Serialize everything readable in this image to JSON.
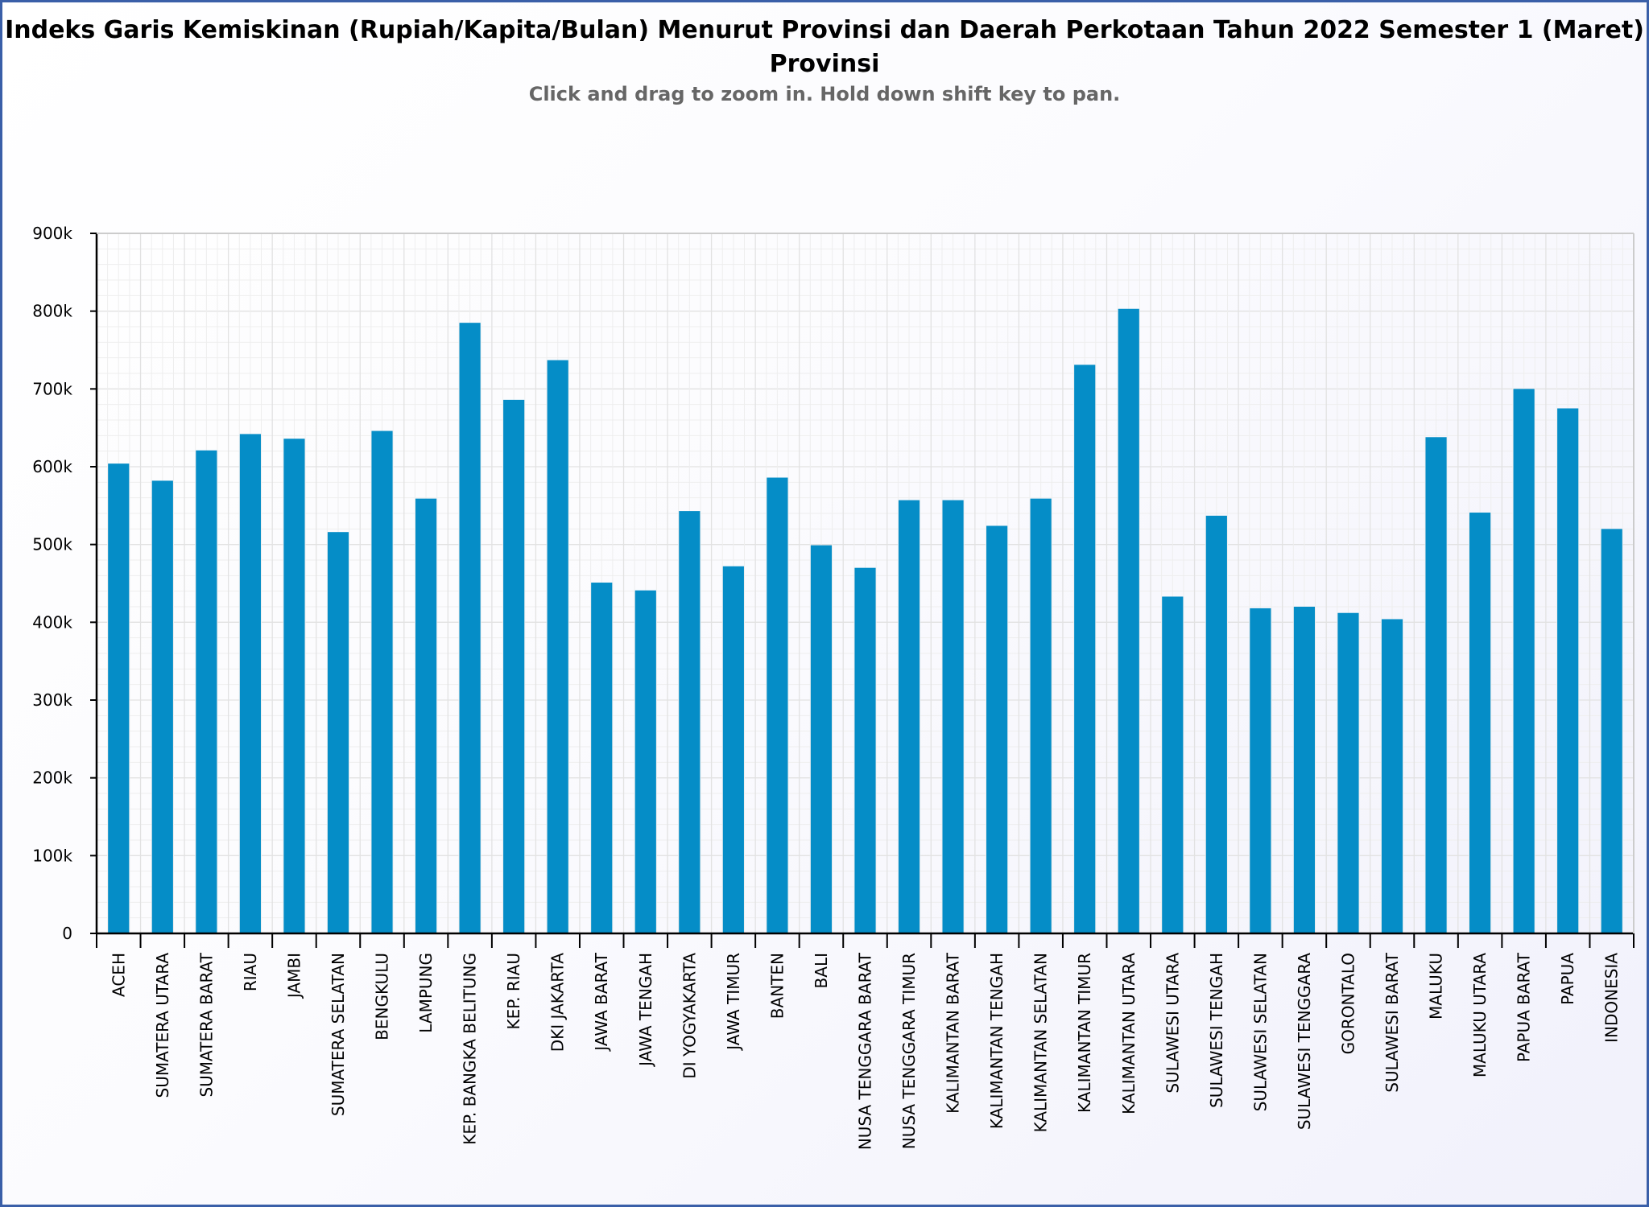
{
  "chart_data": {
    "type": "bar",
    "title_lines": [
      "Indeks Garis Kemiskinan (Rupiah/Kapita/Bulan) Menurut Provinsi dan Daerah Perkotaan Tahun 2022 Semester 1 (Maret)",
      "Provinsi"
    ],
    "subtitle": "Click and drag to zoom in. Hold down shift key to pan.",
    "xlabel": "",
    "ylabel": "",
    "ylim": [
      0,
      900000
    ],
    "yticks": [
      {
        "value": 0,
        "label": "0"
      },
      {
        "value": 100000,
        "label": "100k"
      },
      {
        "value": 200000,
        "label": "200k"
      },
      {
        "value": 300000,
        "label": "300k"
      },
      {
        "value": 400000,
        "label": "400k"
      },
      {
        "value": 500000,
        "label": "500k"
      },
      {
        "value": 600000,
        "label": "600k"
      },
      {
        "value": 700000,
        "label": "700k"
      },
      {
        "value": 800000,
        "label": "800k"
      },
      {
        "value": 900000,
        "label": "900k"
      }
    ],
    "grid": true,
    "bar_color": "#058dc7",
    "categories": [
      "ACEH",
      "SUMATERA UTARA",
      "SUMATERA BARAT",
      "RIAU",
      "JAMBI",
      "SUMATERA SELATAN",
      "BENGKULU",
      "LAMPUNG",
      "KEP. BANGKA BELITUNG",
      "KEP. RIAU",
      "DKI JAKARTA",
      "JAWA BARAT",
      "JAWA TENGAH",
      "DI YOGYAKARTA",
      "JAWA TIMUR",
      "BANTEN",
      "BALI",
      "NUSA TENGGARA BARAT",
      "NUSA TENGGARA TIMUR",
      "KALIMANTAN BARAT",
      "KALIMANTAN TENGAH",
      "KALIMANTAN SELATAN",
      "KALIMANTAN TIMUR",
      "KALIMANTAN UTARA",
      "SULAWESI UTARA",
      "SULAWESI TENGAH",
      "SULAWESI SELATAN",
      "SULAWESI TENGGARA",
      "GORONTALO",
      "SULAWESI BARAT",
      "MALUKU",
      "MALUKU UTARA",
      "PAPUA BARAT",
      "PAPUA",
      "INDONESIA"
    ],
    "values": [
      604000,
      582000,
      621000,
      642000,
      636000,
      516000,
      646000,
      559000,
      785000,
      686000,
      737000,
      451000,
      441000,
      543000,
      472000,
      586000,
      499000,
      470000,
      557000,
      557000,
      524000,
      559000,
      731000,
      803000,
      433000,
      537000,
      418000,
      420000,
      412000,
      404000,
      638000,
      541000,
      700000,
      675000,
      520000
    ]
  }
}
